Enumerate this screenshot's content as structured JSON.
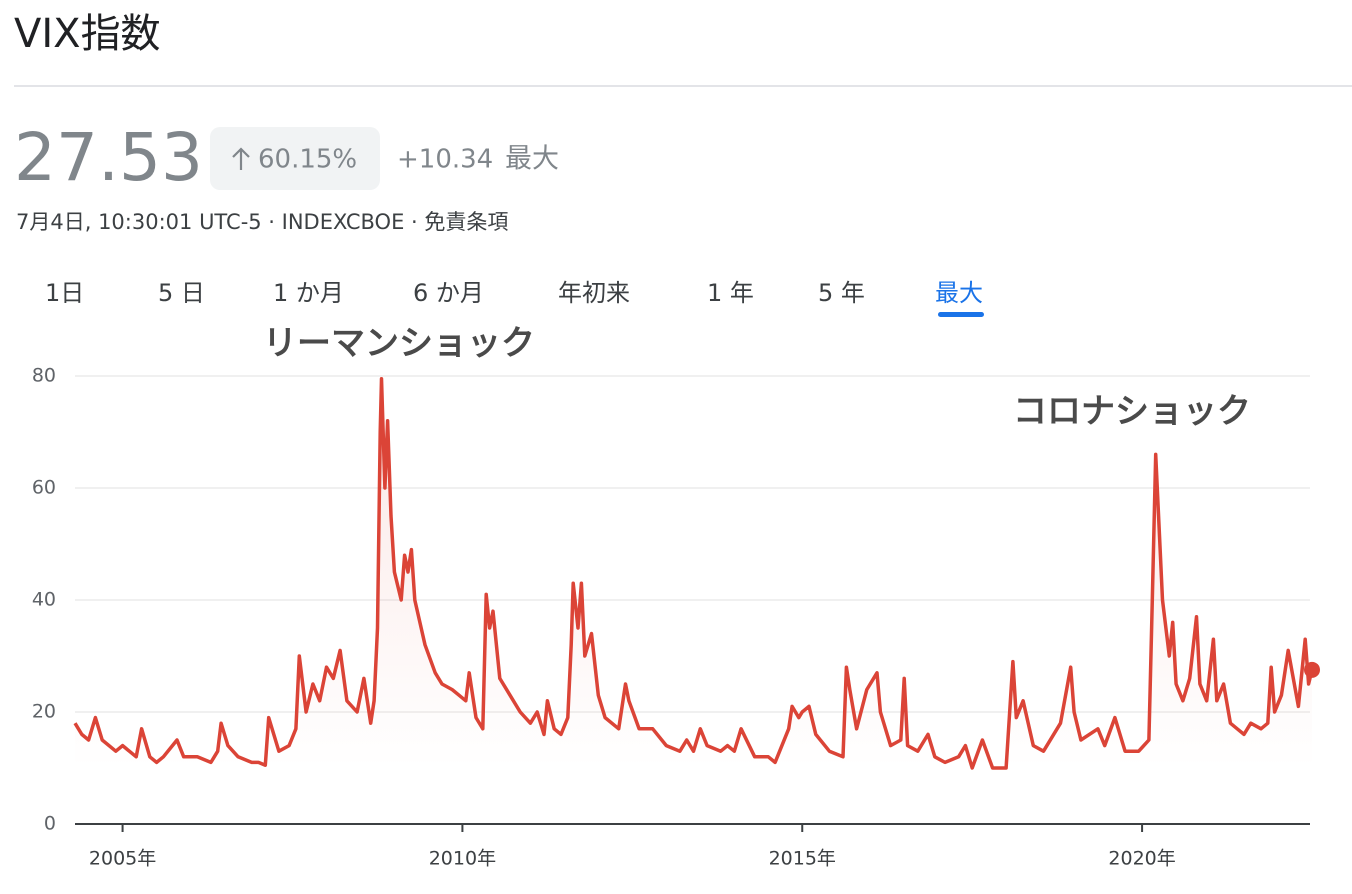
{
  "header": {
    "title": "VIX指数",
    "price": "27.53",
    "change_percent": "60.15%",
    "change": "+10.34",
    "period": "最大",
    "subtitle": "7月4日, 10:30:01 UTC-5 · INDEXCBOE · 免責条項"
  },
  "tabs": [
    "1日",
    "5 日",
    "1 か月",
    "6 か月",
    "年初来",
    "1 年",
    "5 年",
    "最大"
  ],
  "active_tab": 7,
  "chart_data": {
    "type": "line",
    "color": "#db4437",
    "grid": true,
    "annotations": [
      "リーマンショック",
      "コロナショック"
    ],
    "xlim": [
      2004.3,
      2022.5
    ],
    "xticks": [
      {
        "value": 2005,
        "label": "2005年"
      },
      {
        "value": 2010,
        "label": "2010年"
      },
      {
        "value": 2015,
        "label": "2015年"
      },
      {
        "value": 2020,
        "label": "2020年"
      }
    ],
    "ylim": [
      0,
      80
    ],
    "yticks": [
      0,
      20,
      40,
      60,
      80
    ],
    "x": [
      2004.3,
      2004.4,
      2004.5,
      2004.6,
      2004.7,
      2004.9,
      2005.0,
      2005.2,
      2005.28,
      2005.4,
      2005.5,
      2005.6,
      2005.8,
      2005.9,
      2006.1,
      2006.3,
      2006.4,
      2006.45,
      2006.55,
      2006.7,
      2006.9,
      2007.0,
      2007.1,
      2007.15,
      2007.3,
      2007.45,
      2007.55,
      2007.6,
      2007.7,
      2007.8,
      2007.9,
      2008.0,
      2008.1,
      2008.2,
      2008.3,
      2008.45,
      2008.55,
      2008.65,
      2008.7,
      2008.75,
      2008.79,
      2008.81,
      2008.86,
      2008.9,
      2008.95,
      2009.0,
      2009.1,
      2009.15,
      2009.2,
      2009.25,
      2009.3,
      2009.45,
      2009.6,
      2009.7,
      2009.85,
      2009.95,
      2010.05,
      2010.1,
      2010.2,
      2010.3,
      2010.35,
      2010.4,
      2010.45,
      2010.55,
      2010.7,
      2010.85,
      2011.0,
      2011.1,
      2011.2,
      2011.25,
      2011.35,
      2011.45,
      2011.55,
      2011.6,
      2011.63,
      2011.7,
      2011.75,
      2011.8,
      2011.9,
      2012.0,
      2012.1,
      2012.3,
      2012.4,
      2012.45,
      2012.6,
      2012.8,
      2013.0,
      2013.2,
      2013.3,
      2013.4,
      2013.5,
      2013.6,
      2013.8,
      2013.9,
      2014.0,
      2014.1,
      2014.3,
      2014.5,
      2014.6,
      2014.8,
      2014.85,
      2014.95,
      2015.0,
      2015.1,
      2015.2,
      2015.4,
      2015.6,
      2015.65,
      2015.7,
      2015.8,
      2015.95,
      2016.1,
      2016.15,
      2016.3,
      2016.45,
      2016.5,
      2016.55,
      2016.7,
      2016.85,
      2016.95,
      2017.1,
      2017.3,
      2017.4,
      2017.5,
      2017.65,
      2017.8,
      2018.0,
      2018.1,
      2018.15,
      2018.25,
      2018.4,
      2018.55,
      2018.8,
      2018.95,
      2019.0,
      2019.1,
      2019.35,
      2019.45,
      2019.6,
      2019.75,
      2019.95,
      2020.1,
      2020.15,
      2020.2,
      2020.3,
      2020.4,
      2020.45,
      2020.5,
      2020.6,
      2020.7,
      2020.8,
      2020.85,
      2020.95,
      2021.05,
      2021.1,
      2021.2,
      2021.3,
      2021.4,
      2021.5,
      2021.6,
      2021.75,
      2021.85,
      2021.9,
      2021.95,
      2022.05,
      2022.15,
      2022.3,
      2022.4,
      2022.45,
      2022.5
    ],
    "values": [
      18,
      16,
      15,
      19,
      15,
      13,
      14,
      12,
      17,
      12,
      11,
      12,
      15,
      12,
      12,
      11,
      13,
      18,
      14,
      12,
      11,
      11,
      10.5,
      19,
      13,
      14,
      17,
      30,
      20,
      25,
      22,
      28,
      26,
      31,
      22,
      20,
      26,
      18,
      22,
      35,
      70,
      79.5,
      60,
      72,
      55,
      45,
      40,
      48,
      45,
      49,
      40,
      32,
      27,
      25,
      24,
      23,
      22,
      27,
      19,
      17,
      41,
      35,
      38,
      26,
      23,
      20,
      18,
      20,
      16,
      22,
      17,
      16,
      19,
      32,
      43,
      35,
      43,
      30,
      34,
      23,
      19,
      17,
      25,
      22,
      17,
      17,
      14,
      13,
      15,
      13,
      17,
      14,
      13,
      14,
      13,
      17,
      12,
      12,
      11,
      17,
      21,
      19,
      20,
      21,
      16,
      13,
      12,
      28,
      24,
      17,
      24,
      27,
      20,
      14,
      15,
      26,
      14,
      13,
      16,
      12,
      11,
      12,
      14,
      10,
      15,
      10,
      10,
      29,
      19,
      22,
      14,
      13,
      18,
      28,
      20,
      15,
      17,
      14,
      19,
      13,
      13,
      15,
      40,
      66,
      40,
      30,
      36,
      25,
      22,
      26,
      37,
      25,
      22,
      33,
      22,
      25,
      18,
      17,
      16,
      18,
      17,
      18,
      28,
      20,
      23,
      31,
      21,
      33,
      25,
      27.53
    ]
  }
}
